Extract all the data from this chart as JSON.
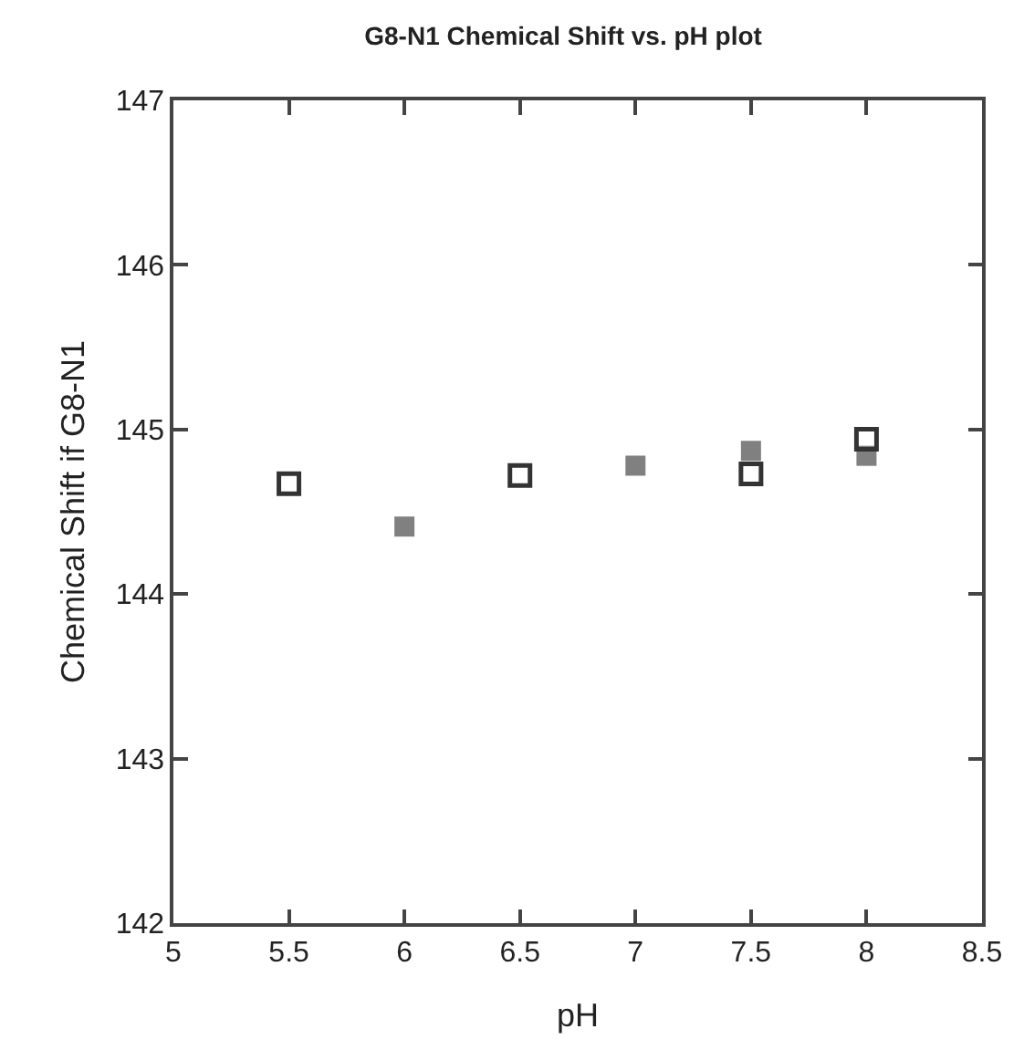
{
  "chart_data": {
    "type": "scatter",
    "title": "G8-N1 Chemical Shift vs. pH plot",
    "xlabel": "pH",
    "ylabel": "Chemical Shift if G8-N1",
    "xlim": [
      5,
      8.5
    ],
    "xticks": [
      5,
      5.5,
      6,
      6.5,
      7,
      7.5,
      8,
      8.5
    ],
    "ylim": [
      142,
      147
    ],
    "yticks": [
      142,
      143,
      144,
      145,
      146,
      147
    ],
    "marker": "square",
    "series": [
      {
        "color": "#808080",
        "x": [
          6,
          7,
          7.5,
          8
        ],
        "values": [
          144.41,
          144.78,
          144.87,
          144.84
        ]
      },
      {
        "color": "#333333",
        "x": [
          5.5,
          6.5,
          7.5,
          8
        ],
        "values": [
          144.67,
          144.72,
          144.73,
          144.94
        ]
      }
    ]
  }
}
